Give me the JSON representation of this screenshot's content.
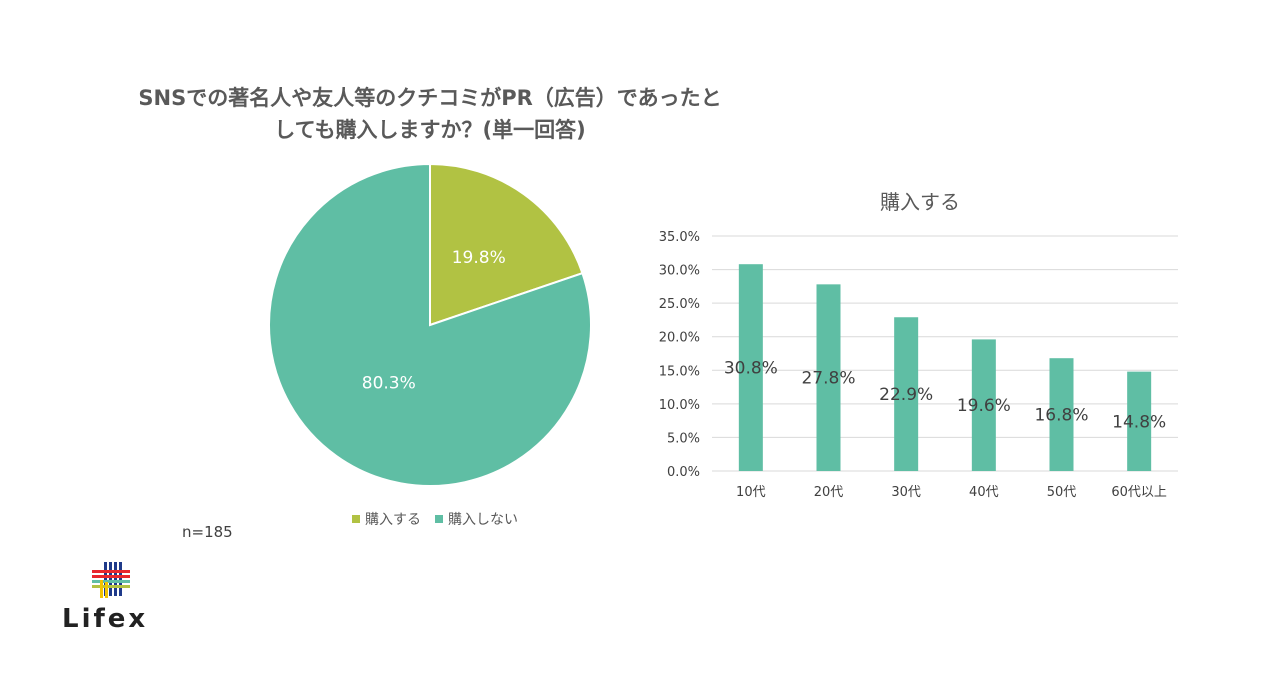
{
  "chart_data": [
    {
      "type": "pie",
      "title_lines": [
        "SNSでの著名人や友人等のクチコミがPR（広告）であったと",
        "しても購入しますか？(単一回答)"
      ],
      "slices": [
        {
          "name": "購入する",
          "value": 19.8,
          "label": "19.8%",
          "color": "#b1c243"
        },
        {
          "name": "購入しない",
          "value": 80.3,
          "label": "80.3%",
          "color": "#5fbea4"
        }
      ],
      "legend": [
        "購入する",
        "購入しない"
      ],
      "legend_placement": "bottom",
      "note": "n=185"
    },
    {
      "type": "bar",
      "title": "購入する",
      "categories": [
        "10代",
        "20代",
        "30代",
        "40代",
        "50代",
        "60代以上"
      ],
      "values": [
        30.8,
        27.8,
        22.9,
        19.6,
        16.8,
        14.8
      ],
      "value_labels": [
        "30.8%",
        "27.8%",
        "22.9%",
        "19.6%",
        "16.8%",
        "14.8%"
      ],
      "yticks": [
        "0.0%",
        "5.0%",
        "10.0%",
        "15.0%",
        "20.0%",
        "25.0%",
        "30.0%",
        "35.0%"
      ],
      "ylim": [
        0,
        35
      ],
      "grid": true,
      "bar_color": "#5fbea4"
    }
  ],
  "logo": {
    "text": "Lifex"
  }
}
